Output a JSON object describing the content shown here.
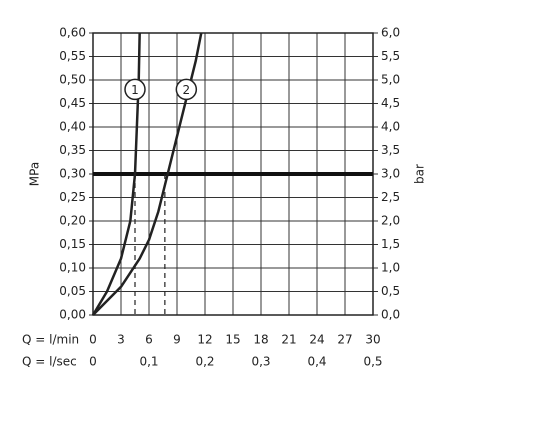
{
  "chart_data": {
    "type": "line",
    "y_label": "MPa",
    "y2_label": "bar",
    "x_label": "Q = l/min",
    "x2_label": "Q = l/sec",
    "xlim": [
      0,
      30
    ],
    "xticks": [
      0,
      3,
      6,
      9,
      12,
      15,
      18,
      21,
      24,
      27,
      30
    ],
    "x2lim": [
      0,
      0.5
    ],
    "x2ticks": [
      0,
      {
        "value": 0.1,
        "label": "0,1"
      },
      {
        "value": 0.2,
        "label": "0,2"
      },
      {
        "value": 0.3,
        "label": "0,3"
      },
      {
        "value": 0.4,
        "label": "0,4"
      },
      {
        "value": 0.5,
        "label": "0,5"
      }
    ],
    "ylim": [
      0,
      0.6
    ],
    "yticks": [
      {
        "value": 0,
        "label": "0,00"
      },
      {
        "value": 0.05,
        "label": "0,05"
      },
      {
        "value": 0.1,
        "label": "0,10"
      },
      {
        "value": 0.15,
        "label": "0,15"
      },
      {
        "value": 0.2,
        "label": "0,20"
      },
      {
        "value": 0.25,
        "label": "0,25"
      },
      {
        "value": 0.3,
        "label": "0,30"
      },
      {
        "value": 0.35,
        "label": "0,35"
      },
      {
        "value": 0.4,
        "label": "0,40"
      },
      {
        "value": 0.45,
        "label": "0,45"
      },
      {
        "value": 0.5,
        "label": "0,50"
      },
      {
        "value": 0.55,
        "label": "0,55"
      },
      {
        "value": 0.6,
        "label": "0,60"
      }
    ],
    "y2lim": [
      0,
      6
    ],
    "y2ticks": [
      {
        "value": 0,
        "label": "0,0"
      },
      {
        "value": 0.5,
        "label": "0,5"
      },
      {
        "value": 1,
        "label": "1,0"
      },
      {
        "value": 1.5,
        "label": "1,5"
      },
      {
        "value": 2,
        "label": "2,0"
      },
      {
        "value": 2.5,
        "label": "2,5"
      },
      {
        "value": 3,
        "label": "3,0"
      },
      {
        "value": 3.5,
        "label": "3,5"
      },
      {
        "value": 4,
        "label": "4,0"
      },
      {
        "value": 4.5,
        "label": "4,5"
      },
      {
        "value": 5,
        "label": "5,0"
      },
      {
        "value": 5.5,
        "label": "5,5"
      },
      {
        "value": 6,
        "label": "6,0"
      }
    ],
    "grid": true,
    "reference_line": 0.3,
    "drop_lines": [
      4.5,
      7.7
    ],
    "series": [
      {
        "name": "1",
        "color": "#222222",
        "label_at": [
          4.5,
          0.48
        ],
        "x": [
          0,
          1.5,
          3,
          4,
          4.5,
          4.7,
          4.9,
          5
        ],
        "values": [
          0,
          0.05,
          0.12,
          0.2,
          0.3,
          0.4,
          0.5,
          0.6
        ]
      },
      {
        "name": "2",
        "color": "#222222",
        "label_at": [
          10,
          0.48
        ],
        "x": [
          0,
          3,
          5,
          6,
          7,
          8,
          9,
          10,
          11,
          11.6
        ],
        "values": [
          0,
          0.06,
          0.12,
          0.16,
          0.22,
          0.3,
          0.38,
          0.46,
          0.54,
          0.6
        ]
      }
    ]
  }
}
